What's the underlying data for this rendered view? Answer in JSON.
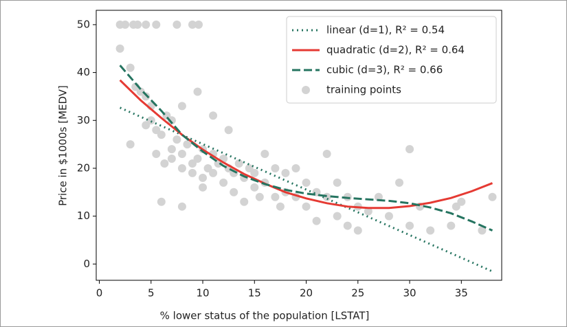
{
  "chart_data": {
    "type": "scatter",
    "xlabel": "% lower status of the population [LSTAT]",
    "ylabel": "Price in $1000s [MEDV]",
    "xlim": [
      -0.3,
      38.9
    ],
    "ylim": [
      -3.4,
      53
    ],
    "xticks": [
      0,
      5,
      10,
      15,
      20,
      25,
      30,
      35
    ],
    "yticks": [
      0,
      10,
      20,
      30,
      40,
      50
    ],
    "legend": "upper right",
    "series": [
      {
        "name": "linear (d=1), R² = 0.54",
        "type": "line",
        "linestyle": "dotted",
        "color": "#257460",
        "x": [
          2,
          4,
          6,
          8,
          10,
          12,
          14,
          16,
          18,
          20,
          22,
          24,
          26,
          28,
          30,
          32,
          34,
          36,
          38
        ],
        "y": [
          32.65,
          30.75,
          28.85,
          26.95,
          25.05,
          23.15,
          21.25,
          19.35,
          17.45,
          15.55,
          13.65,
          11.75,
          9.85,
          7.95,
          6.05,
          4.15,
          2.25,
          0.35,
          -1.55
        ]
      },
      {
        "name": "quadratic (d=2), R² = 0.64",
        "type": "line",
        "linestyle": "solid",
        "color": "#e53a33",
        "x": [
          2,
          4,
          6,
          8,
          10,
          12,
          14,
          16,
          18,
          20,
          22,
          24,
          26,
          28,
          30,
          32,
          34,
          36,
          38
        ],
        "y": [
          38.4,
          34.2,
          30.5,
          27.0,
          23.9,
          21.2,
          18.8,
          16.8,
          15.0,
          13.7,
          12.7,
          12.0,
          11.7,
          11.7,
          12.1,
          12.8,
          13.8,
          15.2,
          16.9
        ]
      },
      {
        "name": "cubic (d=3), R² = 0.66",
        "type": "line",
        "linestyle": "dashed",
        "color": "#257460",
        "x": [
          2,
          4,
          6,
          8,
          10,
          12,
          14,
          16,
          18,
          20,
          22,
          24,
          26,
          28,
          30,
          32,
          34,
          36,
          38
        ],
        "y": [
          41.5,
          36.5,
          32,
          27,
          23.5,
          20.5,
          18.3,
          16.7,
          15.5,
          14.7,
          14.2,
          13.8,
          13.5,
          13.2,
          12.7,
          11.8,
          10.6,
          8.9,
          7
        ]
      },
      {
        "name": "training points",
        "type": "scatter",
        "color": "#d3d3d3",
        "x": [
          2,
          2.5,
          3.3,
          3.7,
          4.5,
          5.5,
          7.5,
          9,
          9.6,
          2,
          3,
          3.5,
          4,
          4.5,
          5,
          5,
          5.5,
          6,
          6.5,
          7,
          7,
          7.5,
          8,
          8,
          8.5,
          9,
          9,
          9.5,
          10,
          10,
          10.5,
          11,
          11,
          11.5,
          12,
          12,
          12.5,
          13,
          13,
          13.5,
          14,
          14,
          14.5,
          15,
          15,
          15.5,
          16,
          16,
          17,
          17,
          17.5,
          18,
          18,
          19,
          19,
          20,
          20,
          21,
          21,
          22,
          22,
          23,
          23,
          24,
          24,
          25,
          25,
          26,
          27,
          28,
          29,
          30,
          30,
          31,
          32,
          34,
          34.5,
          35,
          37,
          38,
          6,
          8,
          3,
          4.5,
          5.5,
          6.3,
          9.5,
          11,
          8,
          12.5,
          10,
          7
        ],
        "y": [
          50,
          50,
          50,
          50,
          50,
          50,
          50,
          50,
          50,
          45,
          41,
          37,
          36,
          35,
          33,
          30,
          28,
          27,
          31,
          24,
          22,
          26,
          23,
          20,
          25,
          21,
          19,
          22,
          24,
          18,
          20,
          23,
          19,
          21,
          17,
          22,
          20,
          19,
          15,
          21,
          18,
          13,
          20,
          16,
          19,
          14,
          23,
          17,
          14,
          20,
          12,
          15,
          19,
          14,
          20,
          17,
          12,
          15,
          9,
          14,
          23,
          10,
          17,
          14,
          8,
          12,
          7,
          11,
          14,
          10,
          17,
          8,
          24,
          12,
          7,
          8,
          12,
          13,
          7,
          14,
          13,
          12,
          25,
          29,
          23,
          21,
          36,
          31,
          33,
          28,
          16,
          30
        ]
      }
    ]
  }
}
